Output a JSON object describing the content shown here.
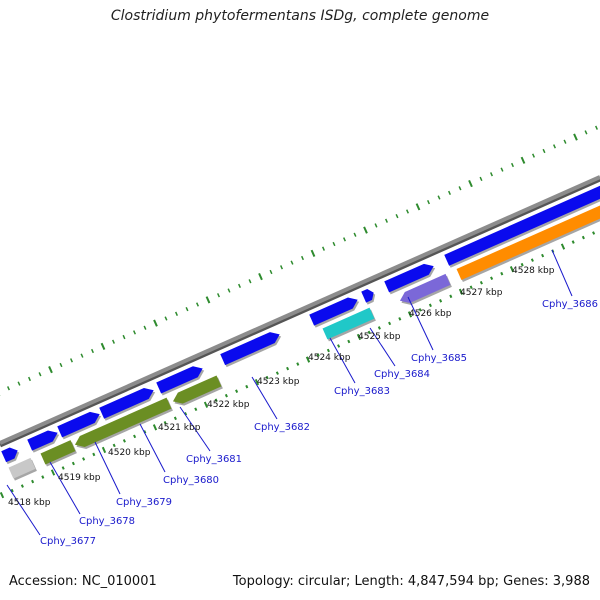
{
  "title": "Clostridium phytofermentans ISDg, complete genome",
  "footer": {
    "accession": "Accession: NC_010001",
    "summary": "Topology: circular; Length: 4,847,594 bp; Genes: 3,988"
  },
  "colors": {
    "backbone": "#8c8c8c",
    "tick": "#2e8b2e",
    "blue": "#0a0aee",
    "olive": "#6b8e23",
    "cyan": "#20c8c8",
    "lavender": "#7b68d8",
    "orange": "#ff8c00",
    "gray": "#c8c8c8",
    "label": "#1a1acc"
  },
  "scale": {
    "ticks": [
      "4518 kbp",
      "4519 kbp",
      "4520 kbp",
      "4521 kbp",
      "4522 kbp",
      "4523 kbp",
      "4524 kbp",
      "4525 kbp",
      "4526 kbp",
      "4527 kbp",
      "4528 kbp"
    ]
  },
  "features": [
    {
      "track": "forward",
      "color": "blue"
    },
    {
      "track": "forward",
      "color": "blue"
    },
    {
      "track": "forward",
      "color": "blue"
    },
    {
      "track": "forward",
      "color": "blue"
    },
    {
      "track": "forward",
      "color": "blue"
    },
    {
      "track": "forward",
      "color": "blue"
    },
    {
      "track": "forward",
      "color": "blue"
    },
    {
      "track": "forward",
      "color": "blue"
    },
    {
      "track": "forward",
      "color": "blue"
    },
    {
      "track": "forward",
      "color": "blue"
    },
    {
      "track": "reverse",
      "color": "gray"
    },
    {
      "track": "reverse",
      "color": "olive"
    },
    {
      "track": "reverse",
      "color": "olive"
    },
    {
      "track": "reverse",
      "color": "olive"
    },
    {
      "track": "reverse",
      "color": "cyan"
    },
    {
      "track": "reverse",
      "color": "lavender"
    },
    {
      "track": "reverse",
      "color": "orange"
    }
  ],
  "gene_labels": [
    "Cphy_3677",
    "Cphy_3678",
    "Cphy_3679",
    "Cphy_3680",
    "Cphy_3681",
    "Cphy_3682",
    "Cphy_3683",
    "Cphy_3684",
    "Cphy_3685",
    "Cphy_3686"
  ]
}
